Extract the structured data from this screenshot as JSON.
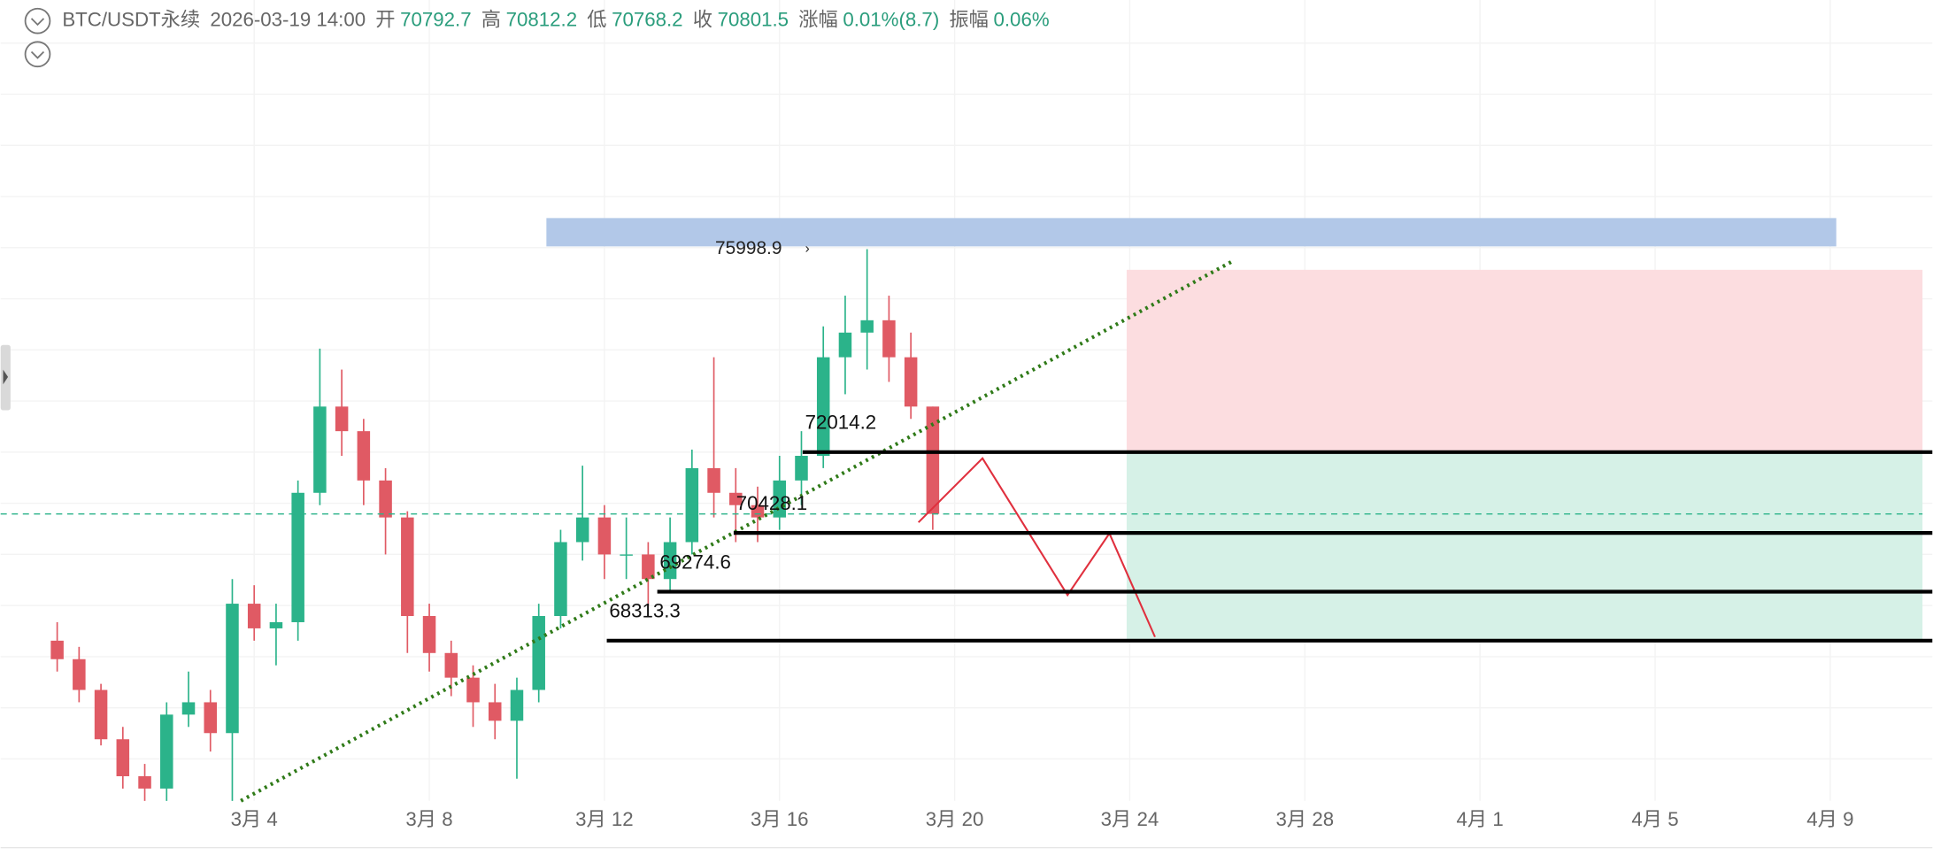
{
  "header": {
    "symbol": "BTC/USDT永续",
    "time": "2026-03-19 14:00",
    "fields": [
      {
        "label": "开",
        "value": "70792.7"
      },
      {
        "label": "高",
        "value": "70812.2"
      },
      {
        "label": "低",
        "value": "70768.2"
      },
      {
        "label": "收",
        "value": "70801.5"
      },
      {
        "label": "涨幅",
        "value": "0.01%(8.7)"
      },
      {
        "label": "振幅",
        "value": "0.06%"
      }
    ]
  },
  "chart_data": {
    "type": "candlestick",
    "up_color": "#2bb38a",
    "down_color": "#e05a64",
    "x": [
      "2026-02-27 12:00",
      "2026-02-28 00:00",
      "2026-02-28 12:00",
      "2026-03-01 00:00",
      "2026-03-01 12:00",
      "2026-03-02 00:00",
      "2026-03-02 12:00",
      "2026-03-03 00:00",
      "2026-03-03 12:00",
      "2026-03-04 00:00",
      "2026-03-04 12:00",
      "2026-03-05 00:00",
      "2026-03-05 12:00",
      "2026-03-06 00:00",
      "2026-03-06 12:00",
      "2026-03-07 00:00",
      "2026-03-07 12:00",
      "2026-03-08 00:00",
      "2026-03-08 12:00",
      "2026-03-09 00:00",
      "2026-03-09 12:00",
      "2026-03-10 00:00",
      "2026-03-10 12:00",
      "2026-03-11 00:00",
      "2026-03-11 12:00",
      "2026-03-12 00:00",
      "2026-03-12 12:00",
      "2026-03-13 00:00",
      "2026-03-13 12:00",
      "2026-03-14 00:00",
      "2026-03-14 12:00",
      "2026-03-15 00:00",
      "2026-03-15 12:00",
      "2026-03-16 00:00",
      "2026-03-16 12:00",
      "2026-03-17 00:00",
      "2026-03-17 12:00",
      "2026-03-18 00:00",
      "2026-03-18 12:00",
      "2026-03-19 00:00",
      "2026-03-19 12:00"
    ],
    "open": [
      68313,
      67950,
      67346,
      66378,
      65652,
      65410,
      66862,
      67104,
      66499,
      69039,
      68555,
      68676,
      71216,
      72909,
      72426,
      71458,
      70732,
      68797,
      68071,
      67587,
      67104,
      66741,
      67346,
      68797,
      70248,
      70732,
      70006,
      70006,
      69523,
      70248,
      71700,
      71216,
      70974,
      70732,
      71458,
      71942,
      73877,
      74361,
      74603,
      73877,
      72909
    ],
    "high": [
      68676,
      68192,
      67466,
      66620,
      65894,
      67104,
      67707,
      67346,
      69523,
      69402,
      69039,
      71458,
      74046,
      73635,
      72667,
      71700,
      70853,
      69039,
      68313,
      67829,
      67466,
      67587,
      69039,
      70490,
      71748,
      70974,
      70732,
      70248,
      70732,
      72063,
      73877,
      71700,
      71337,
      71942,
      72426,
      74482,
      75086,
      75998.9,
      75086,
      74361,
      72909
    ],
    "low": [
      67707,
      67104,
      66257,
      65410,
      65168,
      65168,
      66620,
      66136,
      65168,
      68313,
      67829,
      68313,
      70974,
      71942,
      70974,
      70006,
      68071,
      67707,
      67224,
      66620,
      66378,
      65604,
      67104,
      68555,
      69885,
      69523,
      69523,
      68991,
      69281,
      70006,
      70732,
      70248,
      70248,
      70490,
      70974,
      71700,
      73151,
      73635,
      73393,
      72667,
      70490
    ],
    "close": [
      67950,
      67346,
      66378,
      65652,
      65410,
      66862,
      67104,
      66499,
      69039,
      68555,
      68676,
      71216,
      72909,
      72426,
      71458,
      70732,
      68797,
      68071,
      67587,
      67104,
      66741,
      67346,
      68797,
      70248,
      70732,
      70006,
      70006,
      69523,
      70248,
      71700,
      71216,
      70974,
      70732,
      71458,
      71942,
      73877,
      74361,
      74603,
      73877,
      72909,
      70801.5
    ],
    "xlim": [
      "2026-02-26 05:00",
      "2026-04-11 08:00"
    ],
    "ylim": [
      65170,
      80890
    ],
    "xticks": [
      {
        "value": "2026-03-04 00:00",
        "label": "3月 4"
      },
      {
        "value": "2026-03-08 00:00",
        "label": "3月 8"
      },
      {
        "value": "2026-03-12 00:00",
        "label": "3月 12"
      },
      {
        "value": "2026-03-16 00:00",
        "label": "3月 16"
      },
      {
        "value": "2026-03-20 00:00",
        "label": "3月 20"
      },
      {
        "value": "2026-03-24 00:00",
        "label": "3月 24"
      },
      {
        "value": "2026-03-28 00:00",
        "label": "3月 28"
      },
      {
        "value": "2026-04-01 00:00",
        "label": "4月 1"
      },
      {
        "value": "2026-04-05 00:00",
        "label": "4月 5"
      },
      {
        "value": "2026-04-09 00:00",
        "label": "4月 9"
      }
    ],
    "level_lines": [
      72014.2,
      70428.1,
      69274.6,
      68313.3
    ],
    "grid": true
  }
}
